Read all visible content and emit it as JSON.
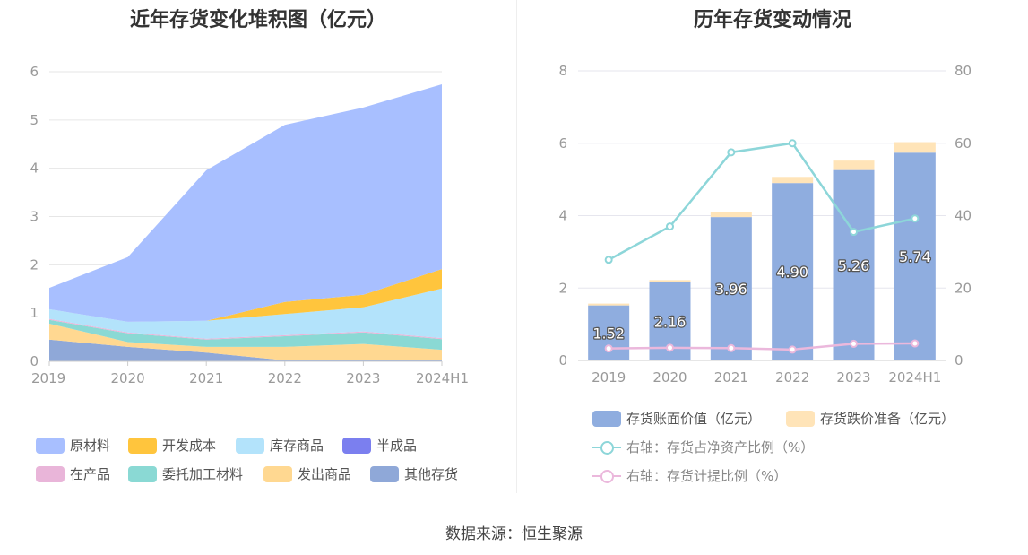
{
  "source_text": "数据来源：恒生聚源",
  "chart_data": [
    {
      "type": "area",
      "stacked": true,
      "title": "近年存货变化堆积图（亿元）",
      "categories": [
        "2019",
        "2020",
        "2021",
        "2022",
        "2023",
        "2024H1"
      ],
      "y_ticks": [
        "0",
        "1",
        "2",
        "3",
        "4",
        "5",
        "6"
      ],
      "ylim": [
        0,
        6
      ],
      "grid": true,
      "legend_position": "bottom",
      "series": [
        {
          "name": "其他存货",
          "color": "#8fa8d8",
          "values": [
            0.45,
            0.3,
            0.18,
            0.02,
            0.02,
            0.02
          ]
        },
        {
          "name": "发出商品",
          "color": "#ffd891",
          "values": [
            0.33,
            0.1,
            0.12,
            0.28,
            0.34,
            0.22
          ]
        },
        {
          "name": "委托加工材料",
          "color": "#8ad9d4",
          "values": [
            0.08,
            0.18,
            0.15,
            0.22,
            0.24,
            0.22
          ]
        },
        {
          "name": "在产品",
          "color": "#e9b5d9",
          "values": [
            0.02,
            0.02,
            0.02,
            0.02,
            0.02,
            0.02
          ]
        },
        {
          "name": "半成品",
          "color": "#7b7fef",
          "values": [
            0.0,
            0.0,
            0.0,
            0.0,
            0.0,
            0.0
          ]
        },
        {
          "name": "库存商品",
          "color": "#b3e3fb",
          "values": [
            0.2,
            0.22,
            0.37,
            0.44,
            0.5,
            1.03
          ]
        },
        {
          "name": "开发成本",
          "color": "#ffc53d",
          "values": [
            0.0,
            0.0,
            0.0,
            0.25,
            0.26,
            0.4
          ]
        },
        {
          "name": "原材料",
          "color": "#a8bfff",
          "values": [
            0.44,
            1.34,
            3.12,
            3.67,
            3.88,
            3.83
          ]
        }
      ],
      "legend_order": [
        "原材料",
        "开发成本",
        "库存商品",
        "半成品",
        "在产品",
        "委托加工材料",
        "发出商品",
        "其他存货"
      ]
    },
    {
      "type": "bar",
      "title": "历年存货变动情况",
      "categories": [
        "2019",
        "2020",
        "2021",
        "2022",
        "2023",
        "2024H1"
      ],
      "y_left_ticks": [
        "0",
        "2",
        "4",
        "6",
        "8"
      ],
      "y_right_ticks": [
        "0",
        "20",
        "40",
        "60",
        "80"
      ],
      "ylim_left": [
        0,
        8
      ],
      "ylim_right": [
        0,
        80
      ],
      "grid": true,
      "legend_position": "bottom",
      "series": [
        {
          "name": "存货账面价值（亿元）",
          "kind": "bar",
          "color": "#8faddf",
          "values": [
            1.52,
            2.16,
            3.96,
            4.9,
            5.26,
            5.74
          ]
        },
        {
          "name": "存货跌价准备（亿元）",
          "kind": "bar-stack",
          "color": "#ffe4b8",
          "values": [
            0.05,
            0.06,
            0.13,
            0.17,
            0.26,
            0.29
          ]
        },
        {
          "name": "右轴：存货占净资产比例（%）",
          "kind": "line",
          "axis": "right",
          "color": "#8dd6d9",
          "values": [
            27.8,
            37.0,
            57.5,
            60.0,
            35.5,
            39.2
          ]
        },
        {
          "name": "右轴：存货计提比例（%）",
          "kind": "line",
          "axis": "right",
          "color": "#ebb8dc",
          "values": [
            3.3,
            3.5,
            3.4,
            3.0,
            4.6,
            4.7
          ]
        }
      ],
      "bar_labels": [
        "1.52",
        "2.16",
        "3.96",
        "4.90",
        "5.26",
        "5.74"
      ]
    }
  ]
}
